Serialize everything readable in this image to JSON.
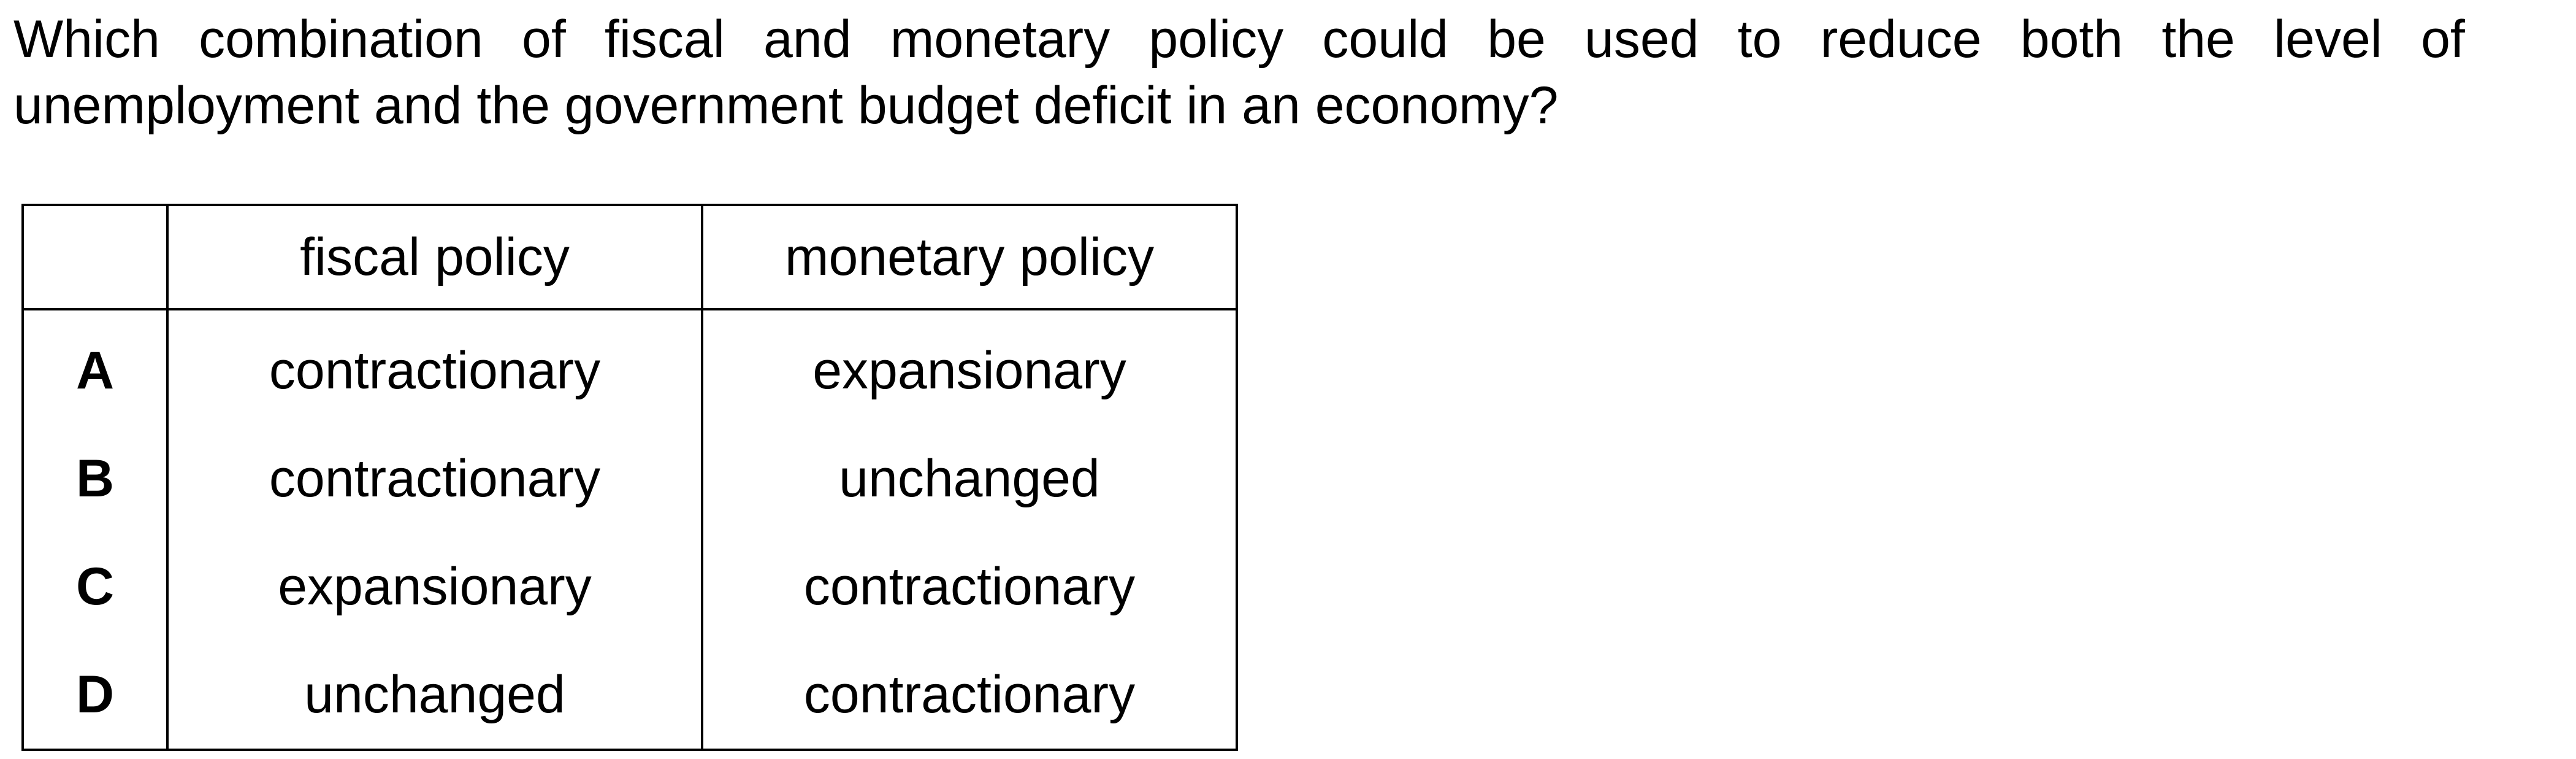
{
  "question": {
    "line1_words": [
      "Which",
      "combination",
      "of",
      "fiscal",
      "and",
      "monetary",
      "policy",
      "could",
      "be",
      "used",
      "to",
      "reduce",
      "both",
      "the",
      "level",
      "of"
    ],
    "line2": "unemployment and the government budget deficit in an economy?"
  },
  "table": {
    "headers": {
      "letter": "",
      "fiscal": "fiscal policy",
      "monetary": "monetary policy"
    },
    "rows": [
      {
        "letter": "A",
        "fiscal": "contractionary",
        "monetary": "expansionary"
      },
      {
        "letter": "B",
        "fiscal": "contractionary",
        "monetary": "unchanged"
      },
      {
        "letter": "C",
        "fiscal": "expansionary",
        "monetary": "contractionary"
      },
      {
        "letter": "D",
        "fiscal": "unchanged",
        "monetary": "contractionary"
      }
    ]
  }
}
